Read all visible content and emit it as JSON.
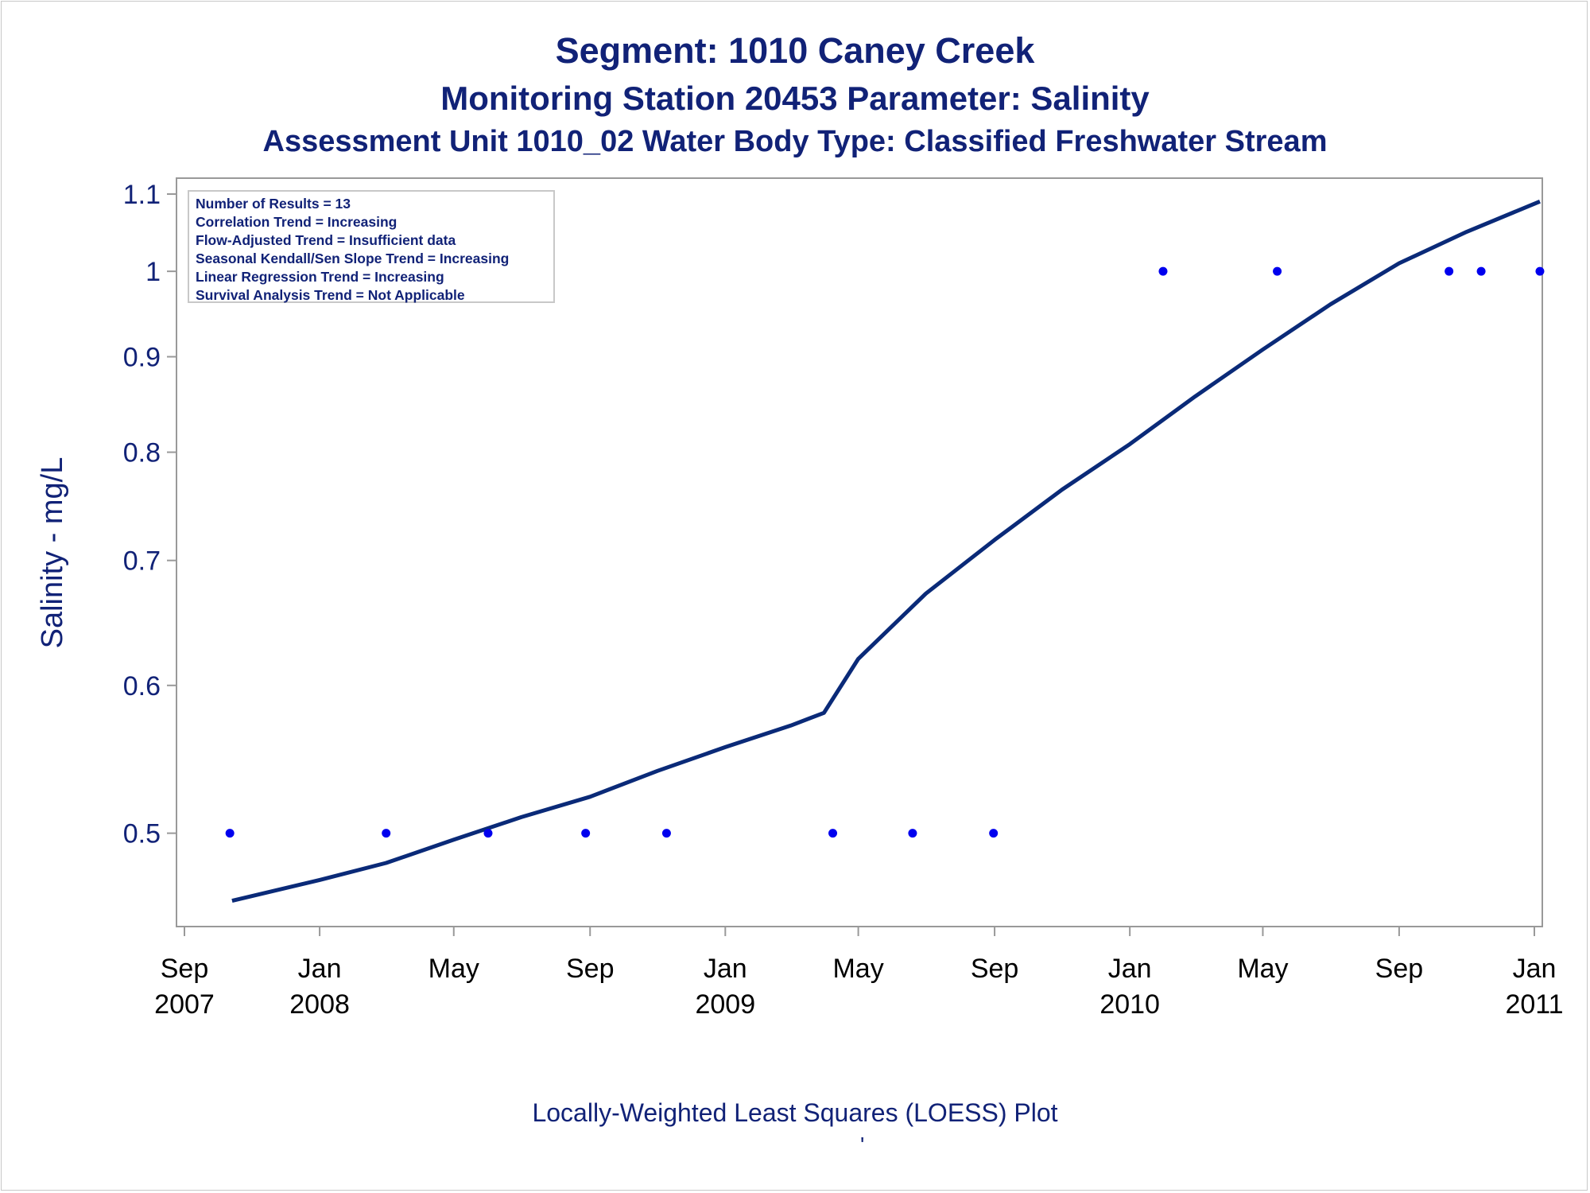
{
  "title": "Segment: 1010  Caney Creek",
  "subtitle": "Monitoring Station 20453 Parameter: Salinity",
  "subtitle2": "Assessment Unit 1010_02   Water Body Type: Classified Freshwater Stream",
  "footnote": "Locally-Weighted Least Squares (LOESS) Plot",
  "footmark": "'",
  "stats": [
    "Number of Results = 13",
    "Correlation Trend = Increasing",
    "Flow-Adjusted Trend = Insufficient data",
    "Seasonal Kendall/Sen Slope Trend = Increasing",
    "Linear Regression Trend = Increasing",
    "Survival Analysis Trend = Not Applicable"
  ],
  "colors": {
    "text": "#112277",
    "line": "#0a2a78",
    "point": "#0000ee",
    "frame": "#999999"
  },
  "chart_data": {
    "type": "scatter",
    "ylabel": "Salinity - mg/L",
    "xlabel": "",
    "y_scale": "log",
    "ylim": [
      0.45,
      1.1
    ],
    "xlim": [
      "2007-09-01",
      "2011-01-01"
    ],
    "yticks": [
      0.5,
      0.6,
      0.7,
      0.8,
      0.9,
      1,
      1.1
    ],
    "ytick_labels": [
      "0.5",
      "0.6",
      "0.7",
      "0.8",
      "0.9",
      "1",
      "1.1"
    ],
    "xticks": [
      {
        "date": "2007-09-01",
        "label": [
          "Sep",
          "2007"
        ]
      },
      {
        "date": "2008-01-01",
        "label": [
          "Jan",
          "2008"
        ]
      },
      {
        "date": "2008-05-01",
        "label": [
          "May",
          ""
        ]
      },
      {
        "date": "2008-09-01",
        "label": [
          "Sep",
          ""
        ]
      },
      {
        "date": "2009-01-01",
        "label": [
          "Jan",
          "2009"
        ]
      },
      {
        "date": "2009-05-01",
        "label": [
          "May",
          ""
        ]
      },
      {
        "date": "2009-09-01",
        "label": [
          "Sep",
          ""
        ]
      },
      {
        "date": "2010-01-01",
        "label": [
          "Jan",
          "2010"
        ]
      },
      {
        "date": "2010-05-01",
        "label": [
          "May",
          ""
        ]
      },
      {
        "date": "2010-09-01",
        "label": [
          "Sep",
          ""
        ]
      },
      {
        "date": "2011-01-01",
        "label": [
          "Jan",
          "2011"
        ]
      }
    ],
    "series": [
      {
        "kind": "points",
        "x": [
          "2007-10-12",
          "2008-03-01",
          "2008-06-01",
          "2008-08-28",
          "2008-11-09",
          "2009-04-08",
          "2009-06-19",
          "2009-08-31",
          "2010-01-31",
          "2010-05-14",
          "2010-10-16",
          "2010-11-14",
          "2011-01-06"
        ],
        "y": [
          0.5,
          0.5,
          0.5,
          0.5,
          0.5,
          0.5,
          0.5,
          0.5,
          1,
          1,
          1,
          1,
          1
        ]
      },
      {
        "kind": "loess",
        "x": [
          "2007-10-14",
          "2008-01-01",
          "2008-03-01",
          "2008-05-01",
          "2008-07-01",
          "2008-09-01",
          "2008-11-01",
          "2009-01-01",
          "2009-03-01",
          "2009-03-31",
          "2009-05-01",
          "2009-07-01",
          "2009-09-01",
          "2009-11-01",
          "2010-01-01",
          "2010-03-01",
          "2010-05-01",
          "2010-07-01",
          "2010-09-01",
          "2010-11-01",
          "2011-01-06"
        ],
        "y": [
          0.46,
          0.472,
          0.482,
          0.496,
          0.51,
          0.523,
          0.54,
          0.556,
          0.571,
          0.58,
          0.62,
          0.672,
          0.718,
          0.764,
          0.808,
          0.857,
          0.908,
          0.96,
          1.01,
          1.05,
          1.09
        ]
      }
    ]
  }
}
